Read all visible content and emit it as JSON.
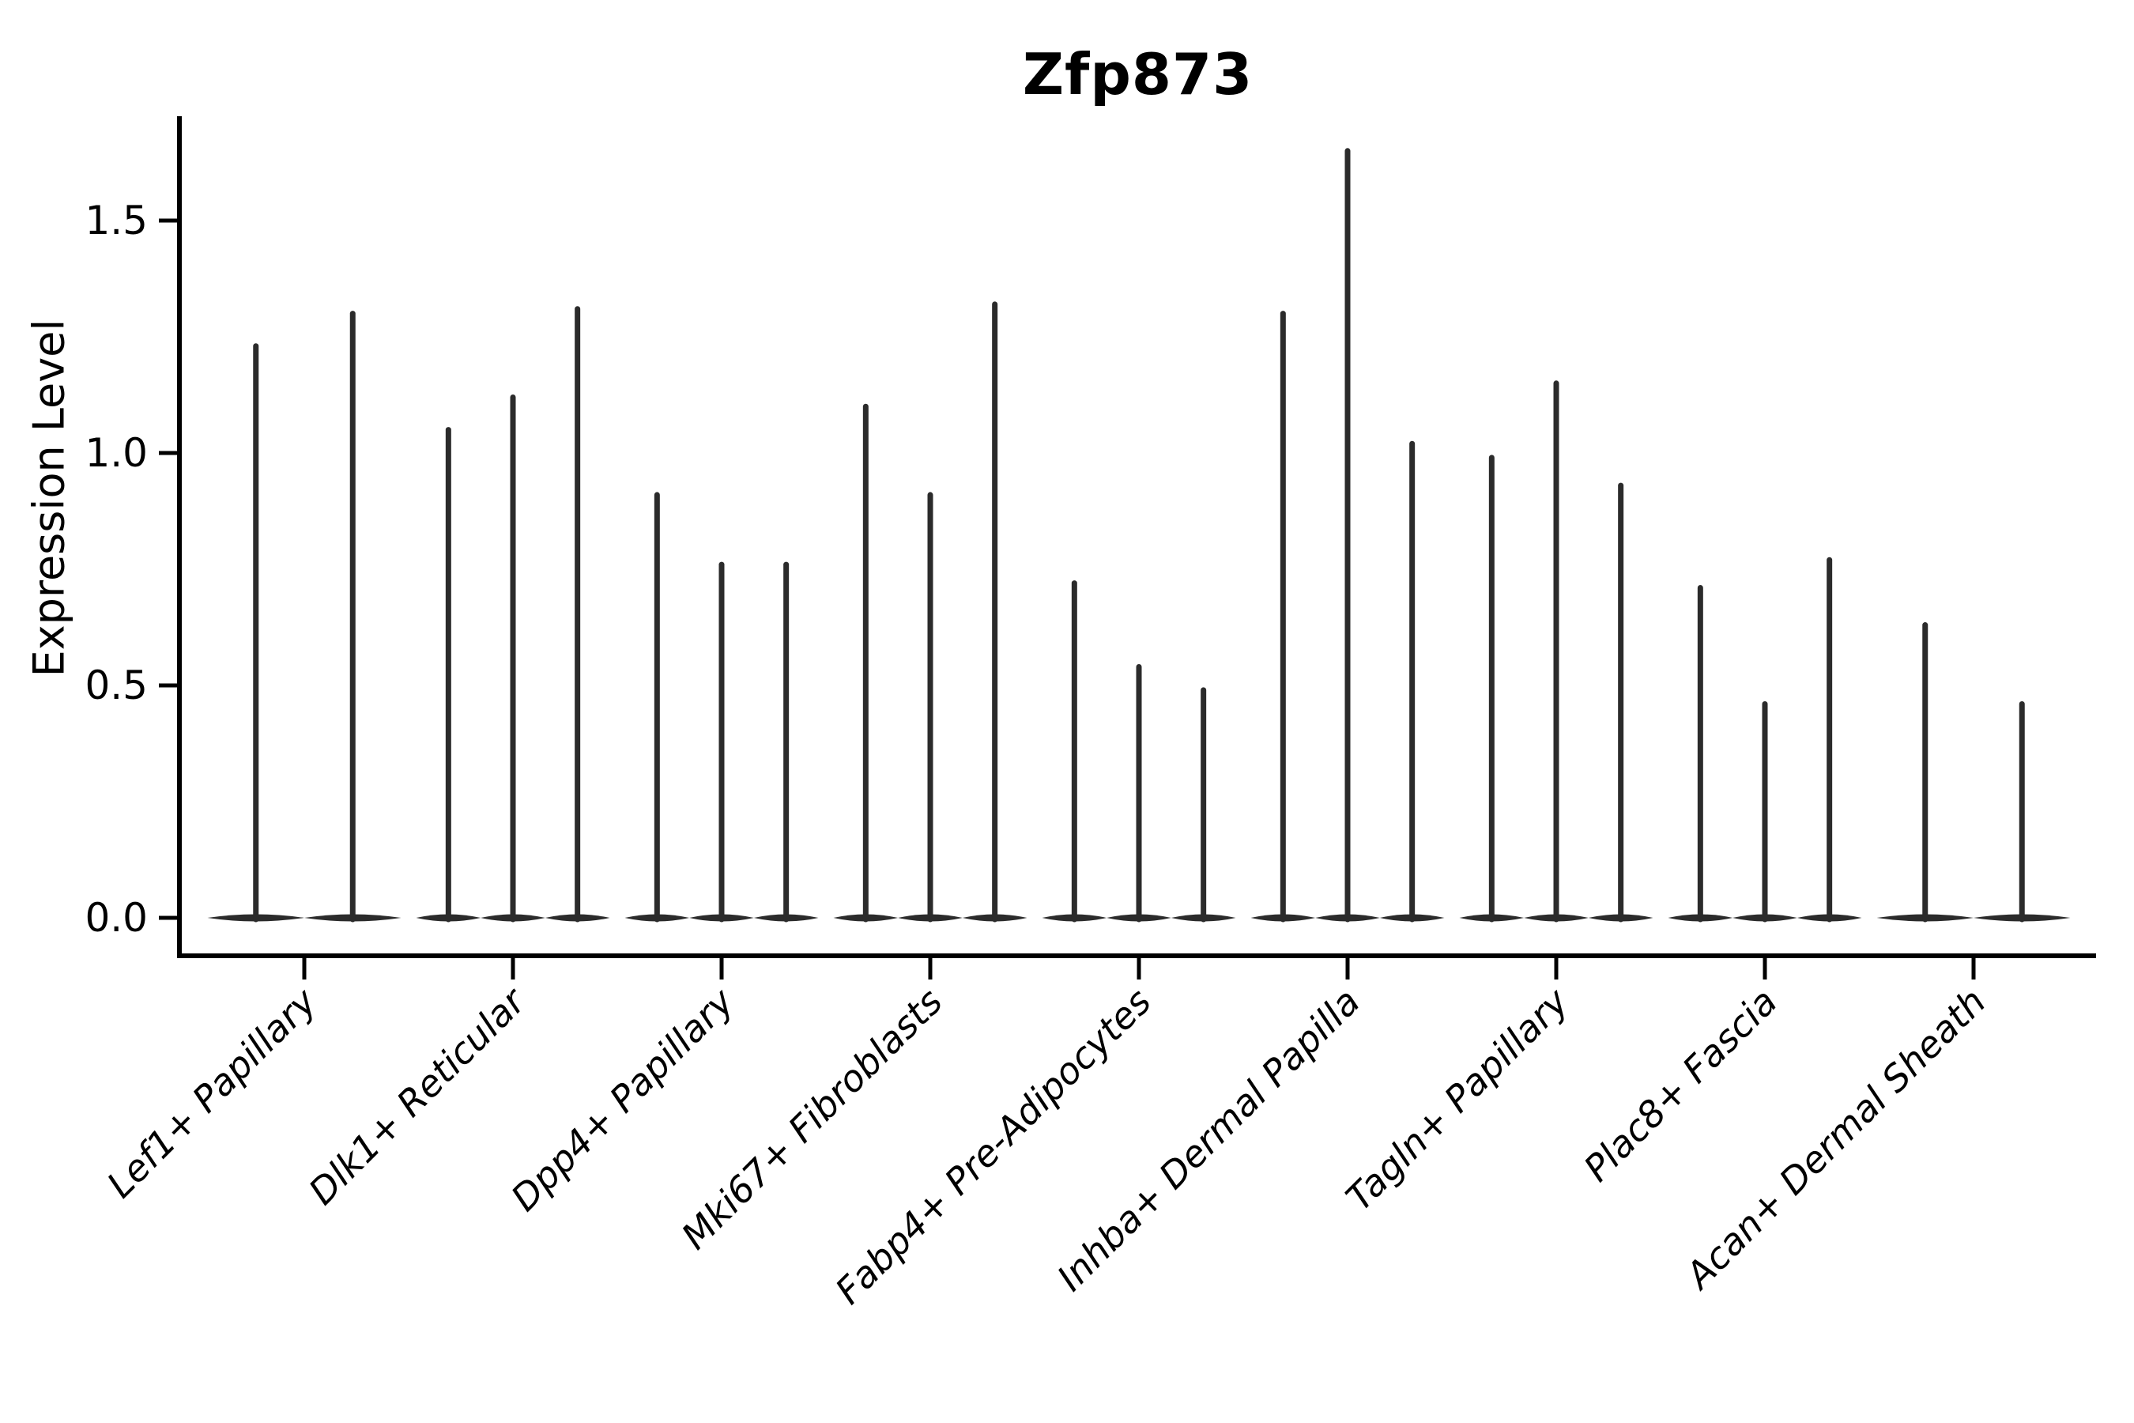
{
  "chart_data": {
    "type": "violin",
    "title": "Zfp873",
    "ylabel": "Expression Level",
    "xlabel": "",
    "grid": false,
    "legend_position": "none",
    "ylim": [
      -0.08,
      1.72
    ],
    "yticks": [
      {
        "label": "0.0",
        "value": 0.0
      },
      {
        "label": "0.5",
        "value": 0.5
      },
      {
        "label": "1.0",
        "value": 1.0
      },
      {
        "label": "1.5",
        "value": 1.5
      }
    ],
    "categories": [
      {
        "label": "Lef1+ Papillary",
        "violin_max_values": [
          1.23,
          1.3
        ]
      },
      {
        "label": "Dlk1+ Reticular",
        "violin_max_values": [
          1.05,
          1.12,
          1.31
        ]
      },
      {
        "label": "Dpp4+ Papillary",
        "violin_max_values": [
          0.91,
          0.76,
          0.76
        ]
      },
      {
        "label": "Mki67+ Fibroblasts",
        "violin_max_values": [
          1.1,
          0.91,
          1.32
        ]
      },
      {
        "label": "Fabp4+ Pre-Adipocytes",
        "violin_max_values": [
          0.72,
          0.54,
          0.49
        ]
      },
      {
        "label": "Inhba+ Dermal Papilla",
        "violin_max_values": [
          1.3,
          1.65,
          1.02
        ]
      },
      {
        "label": "Tagln+ Papillary",
        "violin_max_values": [
          0.99,
          1.15,
          0.93
        ]
      },
      {
        "label": "Plac8+ Fascia",
        "violin_max_values": [
          0.71,
          0.46,
          0.77
        ]
      },
      {
        "label": "Acan+ Dermal Sheath",
        "violin_max_values": [
          0.63,
          0.46
        ]
      }
    ],
    "colors": {
      "violin": "#2b2b2b",
      "axis": "#000000",
      "text": "#000000",
      "background": "#ffffff"
    }
  }
}
